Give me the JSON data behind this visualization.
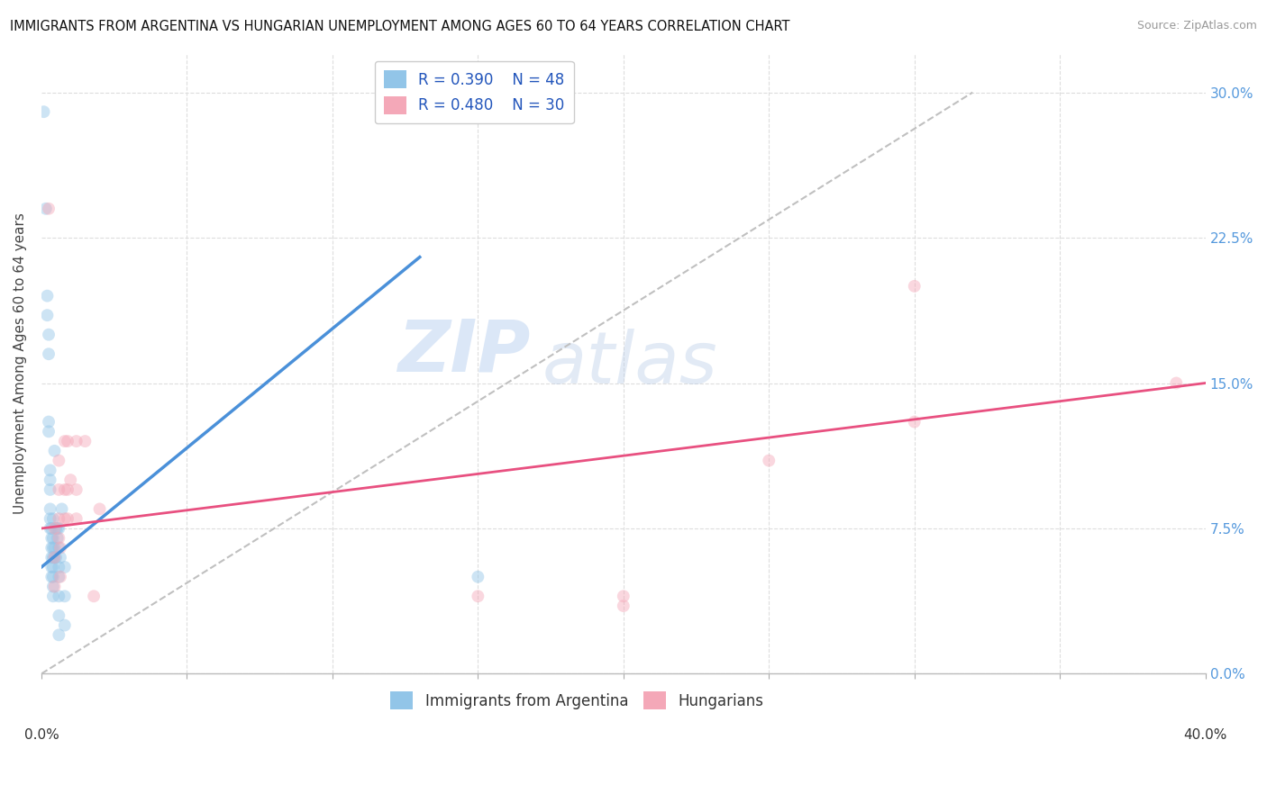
{
  "title": "IMMIGRANTS FROM ARGENTINA VS HUNGARIAN UNEMPLOYMENT AMONG AGES 60 TO 64 YEARS CORRELATION CHART",
  "source": "Source: ZipAtlas.com",
  "ylabel": "Unemployment Among Ages 60 to 64 years",
  "xlim": [
    0.0,
    0.4
  ],
  "ylim": [
    0.0,
    0.32
  ],
  "yticks": [
    0.0,
    0.075,
    0.15,
    0.225,
    0.3
  ],
  "ytick_labels_right": [
    "0.0%",
    "7.5%",
    "15.0%",
    "22.5%",
    "30.0%"
  ],
  "xtick_major": [
    0.0,
    0.4
  ],
  "xtick_major_labels": [
    "0.0%",
    "40.0%"
  ],
  "xtick_minor": [
    0.05,
    0.1,
    0.15,
    0.2,
    0.25,
    0.3,
    0.35
  ],
  "legend_R1": "R = 0.390",
  "legend_N1": "N = 48",
  "legend_R2": "R = 0.480",
  "legend_N2": "N = 30",
  "color_blue": "#92C5E8",
  "color_pink": "#F4A8B8",
  "color_blue_line": "#4A90D9",
  "color_pink_line": "#E85080",
  "color_dashed": "#C0C0C0",
  "watermark_zip": "ZIP",
  "watermark_atlas": "atlas",
  "blue_points": [
    [
      0.0008,
      0.29
    ],
    [
      0.0015,
      0.24
    ],
    [
      0.002,
      0.195
    ],
    [
      0.002,
      0.185
    ],
    [
      0.0025,
      0.175
    ],
    [
      0.0025,
      0.165
    ],
    [
      0.0025,
      0.13
    ],
    [
      0.0025,
      0.125
    ],
    [
      0.003,
      0.105
    ],
    [
      0.003,
      0.1
    ],
    [
      0.003,
      0.095
    ],
    [
      0.003,
      0.085
    ],
    [
      0.003,
      0.08
    ],
    [
      0.003,
      0.075
    ],
    [
      0.0035,
      0.075
    ],
    [
      0.0035,
      0.07
    ],
    [
      0.0035,
      0.065
    ],
    [
      0.0035,
      0.06
    ],
    [
      0.0035,
      0.055
    ],
    [
      0.0035,
      0.05
    ],
    [
      0.004,
      0.08
    ],
    [
      0.004,
      0.07
    ],
    [
      0.004,
      0.065
    ],
    [
      0.004,
      0.06
    ],
    [
      0.004,
      0.055
    ],
    [
      0.004,
      0.05
    ],
    [
      0.004,
      0.045
    ],
    [
      0.004,
      0.04
    ],
    [
      0.0045,
      0.115
    ],
    [
      0.0045,
      0.065
    ],
    [
      0.0045,
      0.06
    ],
    [
      0.005,
      0.075
    ],
    [
      0.005,
      0.06
    ],
    [
      0.0055,
      0.075
    ],
    [
      0.0055,
      0.07
    ],
    [
      0.006,
      0.075
    ],
    [
      0.006,
      0.065
    ],
    [
      0.006,
      0.055
    ],
    [
      0.006,
      0.05
    ],
    [
      0.006,
      0.04
    ],
    [
      0.006,
      0.03
    ],
    [
      0.006,
      0.02
    ],
    [
      0.0065,
      0.06
    ],
    [
      0.007,
      0.085
    ],
    [
      0.008,
      0.055
    ],
    [
      0.008,
      0.04
    ],
    [
      0.008,
      0.025
    ],
    [
      0.15,
      0.05
    ]
  ],
  "pink_points": [
    [
      0.0025,
      0.24
    ],
    [
      0.0045,
      0.075
    ],
    [
      0.0045,
      0.06
    ],
    [
      0.0045,
      0.045
    ],
    [
      0.006,
      0.11
    ],
    [
      0.006,
      0.095
    ],
    [
      0.006,
      0.08
    ],
    [
      0.006,
      0.07
    ],
    [
      0.0065,
      0.065
    ],
    [
      0.0065,
      0.05
    ],
    [
      0.008,
      0.12
    ],
    [
      0.008,
      0.095
    ],
    [
      0.008,
      0.08
    ],
    [
      0.009,
      0.12
    ],
    [
      0.009,
      0.095
    ],
    [
      0.009,
      0.08
    ],
    [
      0.01,
      0.1
    ],
    [
      0.012,
      0.12
    ],
    [
      0.012,
      0.095
    ],
    [
      0.012,
      0.08
    ],
    [
      0.015,
      0.12
    ],
    [
      0.018,
      0.04
    ],
    [
      0.02,
      0.085
    ],
    [
      0.15,
      0.04
    ],
    [
      0.2,
      0.04
    ],
    [
      0.2,
      0.035
    ],
    [
      0.25,
      0.11
    ],
    [
      0.3,
      0.2
    ],
    [
      0.3,
      0.13
    ],
    [
      0.39,
      0.15
    ]
  ],
  "blue_line_x": [
    0.0,
    0.13
  ],
  "blue_line_y": [
    0.055,
    0.215
  ],
  "pink_line_x": [
    0.0,
    0.4
  ],
  "pink_line_y": [
    0.075,
    0.15
  ],
  "diagonal_line_x": [
    0.0,
    0.32
  ],
  "diagonal_line_y": [
    0.0,
    0.3
  ],
  "marker_size": 100,
  "marker_alpha": 0.45,
  "background_color": "#FFFFFF",
  "grid_color": "#DDDDDD",
  "title_fontsize": 10.5,
  "source_fontsize": 9,
  "ylabel_fontsize": 11,
  "ytick_fontsize": 11,
  "xtick_fontsize": 11,
  "legend_fontsize": 12
}
